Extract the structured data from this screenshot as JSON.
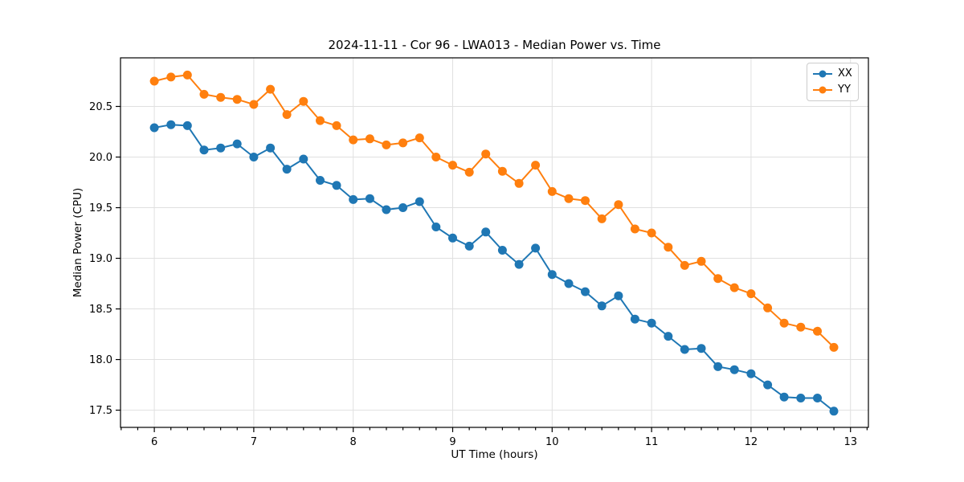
{
  "chart_data": {
    "type": "line",
    "title": "2024-11-11 - Cor 96 - LWA013 - Median Power vs. Time",
    "xlabel": "UT Time (hours)",
    "ylabel": "Median Power (CPU)",
    "xlim": [
      5.66,
      13.18
    ],
    "ylim": [
      17.33,
      20.98
    ],
    "xticks": [
      6,
      7,
      8,
      9,
      10,
      11,
      12,
      13
    ],
    "yticks": [
      17.5,
      18.0,
      18.5,
      19.0,
      19.5,
      20.0,
      20.5
    ],
    "grid": true,
    "grid_color": "#e0e0e0",
    "frame_color": "#000000",
    "legend_position": "upper right",
    "marker": "o",
    "x": [
      6.0,
      6.167,
      6.333,
      6.5,
      6.667,
      6.833,
      7.0,
      7.167,
      7.333,
      7.5,
      7.667,
      7.833,
      8.0,
      8.167,
      8.333,
      8.5,
      8.667,
      8.833,
      9.0,
      9.167,
      9.333,
      9.5,
      9.667,
      9.833,
      10.0,
      10.167,
      10.333,
      10.5,
      10.667,
      10.833,
      11.0,
      11.167,
      11.333,
      11.5,
      11.667,
      11.833,
      12.0,
      12.167,
      12.333,
      12.5,
      12.667,
      12.833
    ],
    "series": [
      {
        "name": "XX",
        "color": "#1f77b4",
        "values": [
          20.29,
          20.32,
          20.31,
          20.07,
          20.09,
          20.13,
          20.0,
          20.09,
          19.88,
          19.98,
          19.77,
          19.72,
          19.58,
          19.59,
          19.48,
          19.5,
          19.56,
          19.31,
          19.2,
          19.12,
          19.26,
          19.08,
          18.94,
          19.1,
          18.84,
          18.75,
          18.67,
          18.53,
          18.63,
          18.4,
          18.36,
          18.23,
          18.1,
          18.11,
          17.93,
          17.9,
          17.86,
          17.75,
          17.63,
          17.62,
          17.62,
          17.49
        ]
      },
      {
        "name": "YY",
        "color": "#ff7f0e",
        "values": [
          20.75,
          20.79,
          20.81,
          20.62,
          20.59,
          20.57,
          20.52,
          20.67,
          20.42,
          20.55,
          20.36,
          20.31,
          20.17,
          20.18,
          20.12,
          20.14,
          20.19,
          20.0,
          19.92,
          19.85,
          20.03,
          19.86,
          19.74,
          19.92,
          19.66,
          19.59,
          19.57,
          19.39,
          19.53,
          19.29,
          19.25,
          19.11,
          18.93,
          18.97,
          18.8,
          18.71,
          18.65,
          18.51,
          18.36,
          18.32,
          18.28,
          18.12
        ]
      }
    ]
  }
}
